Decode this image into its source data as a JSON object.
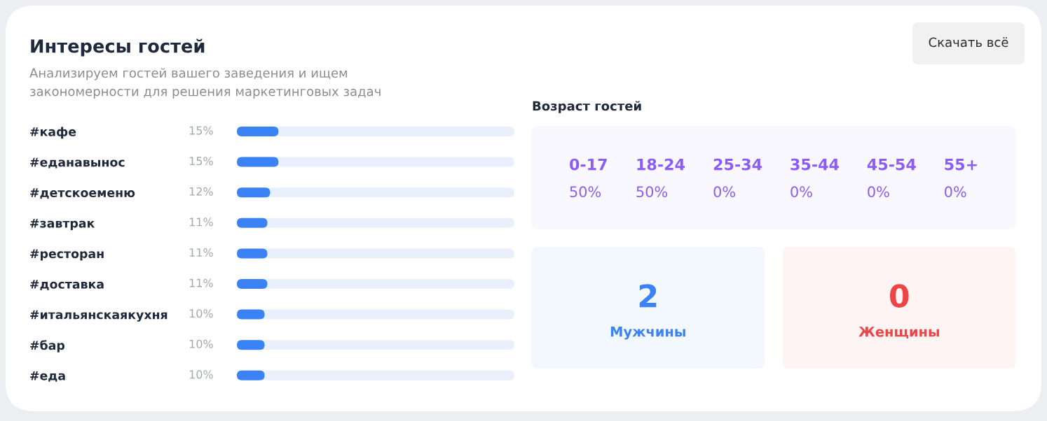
{
  "chart_data": [
    {
      "type": "bar",
      "orientation": "horizontal",
      "title": "Интересы гостей",
      "subtitle": "Анализируем гостей вашего заведения и ищем\nзакономерности для решения маркетинговых задач",
      "categories": [
        "#кафе",
        "#еданавынос",
        "#детскоеменю",
        "#завтрак",
        "#ресторан",
        "#доставка",
        "#итальянскаякухня",
        "#бар",
        "#еда"
      ],
      "values": [
        15,
        15,
        12,
        11,
        11,
        11,
        10,
        10,
        10
      ],
      "value_labels": [
        "15%",
        "15%",
        "12%",
        "11%",
        "11%",
        "11%",
        "10%",
        "10%",
        "10%"
      ],
      "color": "#3b82f6",
      "xlim": [
        0,
        100
      ],
      "tick_labels": "y",
      "annotations": [
        "Скачать всё"
      ]
    },
    {
      "type": "other",
      "title": "Возраст гостей",
      "categories": [
        "0-17",
        "18-24",
        "25-34",
        "35-44",
        "45-54",
        "55+"
      ],
      "values": [
        50,
        50,
        0,
        0,
        0,
        0
      ],
      "value_labels": [
        "50%",
        "50%",
        "0%",
        "0%",
        "0%",
        "0%"
      ],
      "color": "#8b5cf6"
    },
    {
      "type": "other",
      "categories": [
        "Мужчины",
        "Женщины"
      ],
      "values": [
        2,
        0
      ],
      "colors": [
        "#3b82f6",
        "#ef4444"
      ],
      "data_labels": true
    }
  ]
}
